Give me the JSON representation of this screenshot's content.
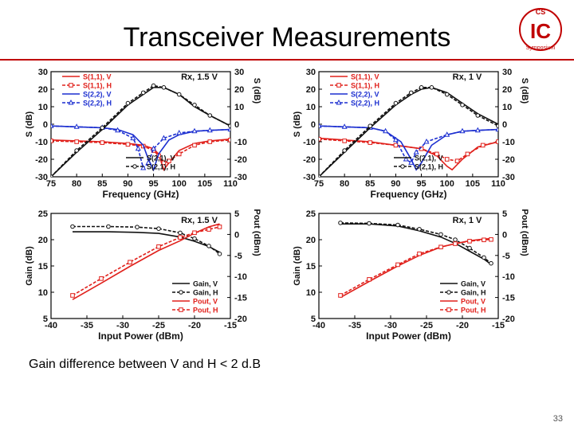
{
  "slide": {
    "title": "Transceiver Measurements",
    "caption": "Gain difference between V and H < 2 d.B",
    "page_number": "33",
    "logo": {
      "line1": "CS",
      "letters": "IC",
      "line2": "Symposium"
    }
  },
  "colors": {
    "red": "#e0201b",
    "blue": "#1c2fd0",
    "black": "#111111",
    "accent": "#c00000"
  },
  "chart_data": [
    {
      "type": "line",
      "annotation": "Rx, 1.5 V",
      "xlabel": "Frequency (GHz)",
      "ylabel_left": "S (dB)",
      "ylabel_right": "S (dB)",
      "xlim": [
        75,
        110
      ],
      "ylim": [
        -30,
        30
      ],
      "xticks": [
        "75",
        "80",
        "85",
        "90",
        "95",
        "100",
        "105",
        "110"
      ],
      "yticks": [
        "30",
        "20",
        "10",
        "0",
        "-10",
        "-20",
        "-30"
      ],
      "yticks_right": [
        "30",
        "20",
        "10",
        "0",
        "-10",
        "-20",
        "-30"
      ],
      "legend_top": [
        "S(1,1), V",
        "S(1,1), H",
        "S(2,2), V",
        "S(2,2), H"
      ],
      "legend_bottom": [
        "S(2,1), V",
        "S(2,1), H"
      ],
      "series": [
        {
          "name": "S(1,1), V",
          "color": "red",
          "dash": "",
          "marker": "",
          "x": [
            75,
            80,
            85,
            90,
            93,
            95,
            96,
            97,
            98,
            100,
            103,
            106,
            110
          ],
          "y": [
            -9,
            -9.5,
            -10,
            -11,
            -12,
            -14,
            -17,
            -26,
            -22,
            -15,
            -11,
            -9.5,
            -8.5
          ]
        },
        {
          "name": "S(1,1), H",
          "color": "red",
          "dash": "4,2",
          "marker": "square",
          "x": [
            75,
            80,
            85,
            90,
            93,
            95,
            96,
            97,
            98,
            100,
            103,
            106,
            110
          ],
          "y": [
            -9.5,
            -10,
            -10.5,
            -11.5,
            -12.5,
            -15,
            -18,
            -22,
            -21,
            -17,
            -12,
            -10,
            -9
          ]
        },
        {
          "name": "S(2,2), V",
          "color": "blue",
          "dash": "",
          "marker": "",
          "x": [
            75,
            80,
            85,
            88,
            91,
            93,
            94,
            95,
            96,
            98,
            100,
            103,
            106,
            110
          ],
          "y": [
            -1,
            -1.5,
            -2,
            -3,
            -6,
            -12,
            -20,
            -26,
            -17,
            -9,
            -6,
            -4,
            -3.5,
            -3
          ]
        },
        {
          "name": "S(2,2), H",
          "color": "blue",
          "dash": "4,2",
          "marker": "triangle",
          "x": [
            75,
            80,
            85,
            88,
            91,
            92,
            93,
            94,
            95,
            97,
            100,
            103,
            106,
            110
          ],
          "y": [
            -1,
            -1.5,
            -2,
            -3.5,
            -8,
            -14,
            -25,
            -22,
            -14,
            -8,
            -5,
            -4,
            -3.5,
            -3
          ]
        },
        {
          "name": "S(2,1), V",
          "color": "black",
          "dash": "",
          "marker": "",
          "x": [
            75,
            80,
            85,
            90,
            93,
            95,
            97,
            100,
            103,
            106,
            110
          ],
          "y": [
            -30,
            -16,
            -3,
            11,
            17,
            21,
            21,
            17,
            10,
            5,
            -1
          ]
        },
        {
          "name": "S(2,1), H",
          "color": "black",
          "dash": "4,2",
          "marker": "circle",
          "x": [
            75,
            80,
            85,
            90,
            93,
            95,
            97,
            100,
            103,
            106,
            110
          ],
          "y": [
            -30,
            -15,
            -2,
            12,
            18,
            22,
            21,
            17,
            11,
            5,
            -1
          ]
        }
      ]
    },
    {
      "type": "line",
      "annotation": "Rx, 1 V",
      "xlabel": "Frequency (GHz)",
      "ylabel_left": "S (dB)",
      "ylabel_right": "S (dB)",
      "xlim": [
        75,
        110
      ],
      "ylim": [
        -30,
        30
      ],
      "xticks": [
        "75",
        "80",
        "85",
        "90",
        "95",
        "100",
        "105",
        "110"
      ],
      "yticks": [
        "30",
        "20",
        "10",
        "0",
        "-10",
        "-20",
        "-30"
      ],
      "yticks_right": [
        "30",
        "20",
        "10",
        "0",
        "-10",
        "-20",
        "-30"
      ],
      "legend_top": [
        "S(1,1), V",
        "S(1,1), H",
        "S(2,2), V",
        "S(2,2), H"
      ],
      "legend_bottom": [
        "S(2,1), V",
        "S(2,1), H"
      ],
      "series": [
        {
          "name": "S(1,1), V",
          "color": "red",
          "dash": "",
          "marker": "",
          "x": [
            75,
            80,
            85,
            90,
            95,
            98,
            100,
            101,
            103,
            106,
            110
          ],
          "y": [
            -8,
            -9,
            -10,
            -12,
            -14,
            -18,
            -24,
            -26,
            -20,
            -13,
            -10
          ]
        },
        {
          "name": "S(1,1), H",
          "color": "red",
          "dash": "4,2",
          "marker": "square",
          "x": [
            75,
            80,
            85,
            90,
            95,
            98,
            100,
            102,
            104,
            107,
            110
          ],
          "y": [
            -8.5,
            -9.5,
            -10.5,
            -12,
            -14,
            -17,
            -20,
            -21,
            -17,
            -12,
            -10
          ]
        },
        {
          "name": "S(2,2), V",
          "color": "blue",
          "dash": "",
          "marker": "",
          "x": [
            75,
            80,
            85,
            88,
            91,
            93,
            94,
            95,
            97,
            100,
            103,
            106,
            110
          ],
          "y": [
            -1,
            -1.5,
            -2,
            -4,
            -10,
            -20,
            -26,
            -22,
            -12,
            -6,
            -4,
            -3.5,
            -3
          ]
        },
        {
          "name": "S(2,2), H",
          "color": "blue",
          "dash": "4,2",
          "marker": "triangle",
          "x": [
            75,
            80,
            85,
            88,
            90,
            92,
            93,
            94,
            96,
            100,
            103,
            106,
            110
          ],
          "y": [
            -1,
            -1.5,
            -2,
            -4,
            -9,
            -20,
            -22,
            -16,
            -10,
            -6,
            -4,
            -3.5,
            -3
          ]
        },
        {
          "name": "S(2,1), V",
          "color": "black",
          "dash": "",
          "marker": "",
          "x": [
            75,
            80,
            85,
            90,
            93,
            95,
            97,
            100,
            103,
            106,
            110
          ],
          "y": [
            -30,
            -16,
            -2,
            11,
            17,
            20,
            21,
            18,
            12,
            6,
            0
          ]
        },
        {
          "name": "S(2,1), H",
          "color": "black",
          "dash": "4,2",
          "marker": "circle",
          "x": [
            75,
            80,
            85,
            90,
            93,
            95,
            97,
            100,
            103,
            106,
            110
          ],
          "y": [
            -30,
            -15,
            -1,
            12,
            18,
            21,
            21,
            17,
            11,
            5,
            -1
          ]
        }
      ]
    },
    {
      "type": "line",
      "annotation": "Rx, 1.5 V",
      "xlabel": "Input Power (dBm)",
      "ylabel_left": "Gain (dB)",
      "ylabel_right": "Pout (dBm)",
      "xlim": [
        -40,
        -15
      ],
      "ylim": [
        5,
        25
      ],
      "y2lim": [
        -20,
        5
      ],
      "xticks": [
        "-40",
        "-35",
        "-30",
        "-25",
        "-20",
        "-15"
      ],
      "yticks": [
        "25",
        "20",
        "15",
        "10",
        "5"
      ],
      "yticks_right": [
        "5",
        "0",
        "-5",
        "-10",
        "-15",
        "-20"
      ],
      "legend_bottom": [
        "Gain, V",
        "Gain, H",
        "Pout, V",
        "Pout, H"
      ],
      "series": [
        {
          "name": "Gain, V",
          "color": "black",
          "dash": "",
          "marker": "",
          "axis": "left",
          "x": [
            -37,
            -32,
            -28,
            -25,
            -22,
            -20,
            -18,
            -16.5
          ],
          "y": [
            21.5,
            21.5,
            21.4,
            21.2,
            20.5,
            19.7,
            18.7,
            17.6
          ]
        },
        {
          "name": "Gain, H",
          "color": "black",
          "dash": "4,2",
          "marker": "circle",
          "axis": "left",
          "x": [
            -37,
            -32,
            -28,
            -25,
            -22,
            -20,
            -18,
            -16.5
          ],
          "y": [
            22.5,
            22.5,
            22.4,
            22.1,
            21.3,
            20.2,
            18.8,
            17.3
          ]
        },
        {
          "name": "Pout, V",
          "color": "red",
          "dash": "",
          "marker": "",
          "axis": "right",
          "x": [
            -37,
            -33,
            -29,
            -25,
            -22,
            -20,
            -18,
            -16.5
          ],
          "y": [
            -15.5,
            -11.6,
            -7.6,
            -3.8,
            -1.5,
            0.3,
            1.8,
            2.5
          ]
        },
        {
          "name": "Pout, H",
          "color": "red",
          "dash": "4,2",
          "marker": "square",
          "axis": "right",
          "x": [
            -37,
            -33,
            -29,
            -25,
            -22,
            -20,
            -18,
            -16.5
          ],
          "y": [
            -14.5,
            -10.5,
            -6.6,
            -2.9,
            -0.7,
            0.4,
            1.2,
            1.8
          ]
        }
      ]
    },
    {
      "type": "line",
      "annotation": "Rx, 1 V",
      "xlabel": "Input Power (dBm)",
      "ylabel_left": "Gain (dB)",
      "ylabel_right": "Pout (dBm)",
      "xlim": [
        -40,
        -15
      ],
      "ylim": [
        5,
        25
      ],
      "y2lim": [
        -20,
        5
      ],
      "xticks": [
        "-40",
        "-35",
        "-30",
        "-25",
        "-20",
        "-15"
      ],
      "yticks": [
        "25",
        "20",
        "15",
        "10",
        "5"
      ],
      "yticks_right": [
        "5",
        "0",
        "-5",
        "-10",
        "-15",
        "-20"
      ],
      "legend_bottom": [
        "Gain, V",
        "Gain, H",
        "Pout, V",
        "Pout, H"
      ],
      "series": [
        {
          "name": "Gain, V",
          "color": "black",
          "dash": "",
          "marker": "",
          "axis": "left",
          "x": [
            -37,
            -33,
            -29,
            -26,
            -23,
            -21,
            -19,
            -17,
            -16
          ],
          "y": [
            23,
            23,
            22.6,
            21.7,
            20.5,
            19.3,
            17.8,
            16.3,
            15.3
          ]
        },
        {
          "name": "Gain, H",
          "color": "black",
          "dash": "4,2",
          "marker": "circle",
          "axis": "left",
          "x": [
            -37,
            -33,
            -29,
            -26,
            -23,
            -21,
            -19,
            -17,
            -16
          ],
          "y": [
            23.2,
            23.1,
            22.8,
            22,
            21,
            20,
            18.4,
            16.6,
            15.5
          ]
        },
        {
          "name": "Pout, V",
          "color": "red",
          "dash": "",
          "marker": "",
          "axis": "right",
          "x": [
            -37,
            -33,
            -29,
            -26,
            -23,
            -21,
            -19,
            -17,
            -16
          ],
          "y": [
            -15,
            -11.2,
            -7.5,
            -5,
            -3,
            -2.2,
            -1.5,
            -1.1,
            -1
          ]
        },
        {
          "name": "Pout, H",
          "color": "red",
          "dash": "4,2",
          "marker": "square",
          "axis": "right",
          "x": [
            -37,
            -33,
            -29,
            -26,
            -23,
            -21,
            -19,
            -17,
            -16
          ],
          "y": [
            -14.5,
            -10.7,
            -7.2,
            -4.6,
            -3,
            -2.2,
            -1.6,
            -1.3,
            -1.2
          ]
        }
      ]
    }
  ]
}
